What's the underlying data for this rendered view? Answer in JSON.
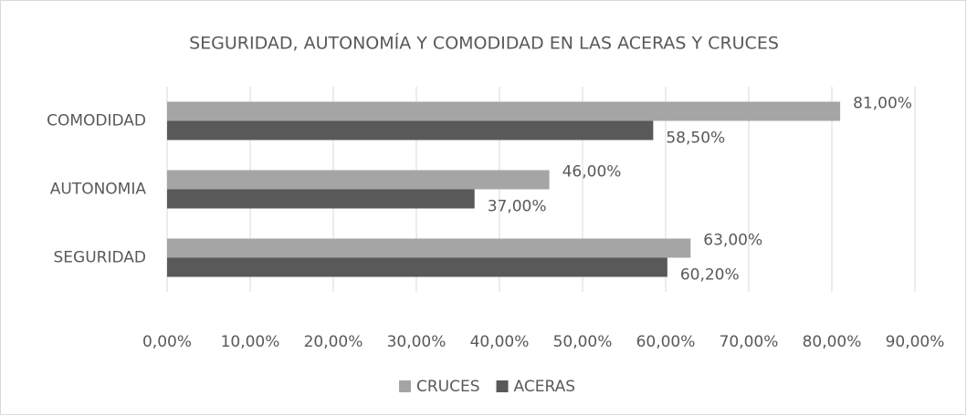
{
  "chart_data": {
    "type": "hbar",
    "title": "SEGURIDAD, AUTONOMÍA Y COMODIDAD EN LAS ACERAS Y CRUCES",
    "categories": [
      "COMODIDAD",
      "AUTONOMIA",
      "SEGURIDAD"
    ],
    "series": [
      {
        "name": "CRUCES",
        "color": "#a5a5a5",
        "values": [
          81,
          46,
          63
        ],
        "value_labels": [
          "81,00%",
          "46,00%",
          "63,00%"
        ]
      },
      {
        "name": "ACERAS",
        "color": "#595959",
        "values": [
          58.5,
          37,
          60.2
        ],
        "value_labels": [
          "58,50%",
          "37,00%",
          "60,20%"
        ]
      }
    ],
    "xlim": [
      0,
      90
    ],
    "xticks": [
      {
        "value": 0,
        "label": "0,00%"
      },
      {
        "value": 10,
        "label": "10,00%"
      },
      {
        "value": 20,
        "label": "20,00%"
      },
      {
        "value": 30,
        "label": "30,00%"
      },
      {
        "value": 40,
        "label": "40,00%"
      },
      {
        "value": 50,
        "label": "50,00%"
      },
      {
        "value": 60,
        "label": "60,00%"
      },
      {
        "value": 70,
        "label": "70,00%"
      },
      {
        "value": 80,
        "label": "80,00%"
      },
      {
        "value": 90,
        "label": "90,00%"
      }
    ],
    "grid": true,
    "legend": "bottom"
  }
}
